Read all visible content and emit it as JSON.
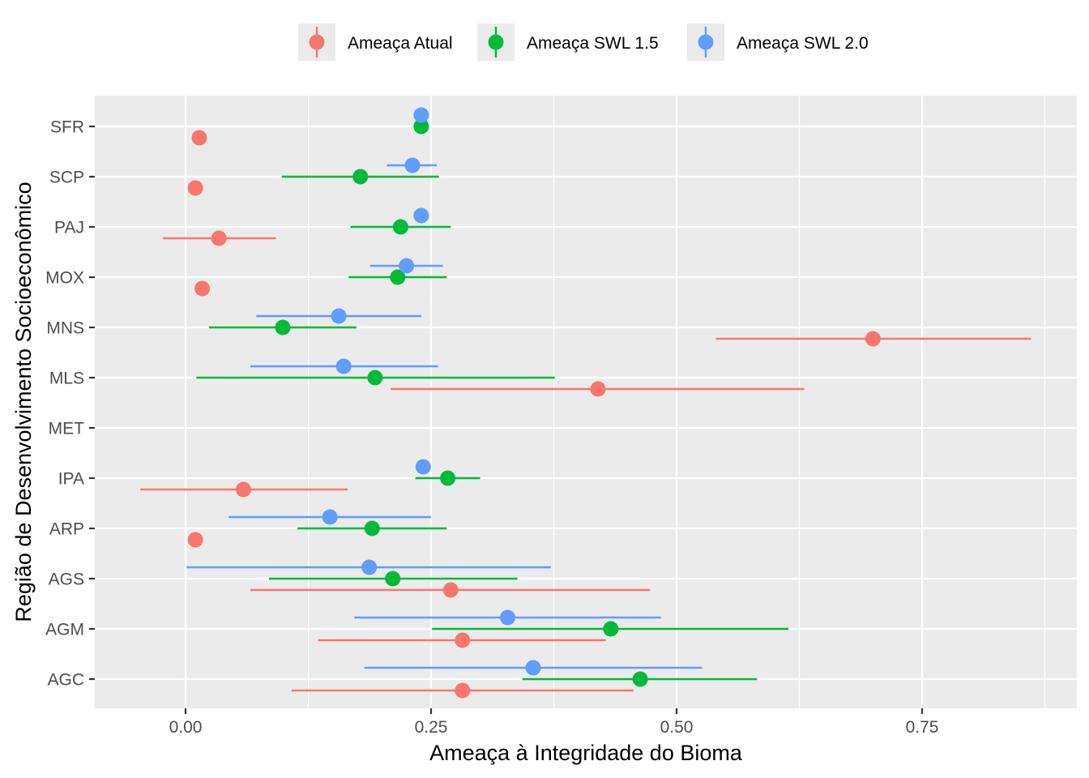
{
  "chart_data": {
    "type": "errorbar-dot",
    "xlabel": "Ameaça à Integridade do Bioma",
    "ylabel": "Região de Desenvolvimento Socioeconômico",
    "xlim": [
      -0.09,
      0.9
    ],
    "xticks": [
      0.0,
      0.25,
      0.5,
      0.75
    ],
    "xtick_labels": [
      "0.00",
      "0.25",
      "0.50",
      "0.75"
    ],
    "categories": [
      "SFR",
      "SCP",
      "PAJ",
      "MOX",
      "MNS",
      "MLS",
      "MET",
      "IPA",
      "ARP",
      "AGS",
      "AGM",
      "AGC"
    ],
    "grid": true,
    "legend_position": "top",
    "series": [
      {
        "name": "Ameaça Atual",
        "color": "#F8766D",
        "points": [
          {
            "category": "SFR",
            "value": 0.014,
            "low": null,
            "high": null
          },
          {
            "category": "SCP",
            "value": 0.01,
            "low": null,
            "high": null
          },
          {
            "category": "PAJ",
            "value": 0.034,
            "low": -0.023,
            "high": 0.092
          },
          {
            "category": "MOX",
            "value": 0.017,
            "low": 0.01,
            "high": 0.024
          },
          {
            "category": "MNS",
            "value": 0.7,
            "low": 0.54,
            "high": 0.861
          },
          {
            "category": "MLS",
            "value": 0.42,
            "low": 0.209,
            "high": 0.63
          },
          {
            "category": "IPA",
            "value": 0.059,
            "low": -0.046,
            "high": 0.165
          },
          {
            "category": "ARP",
            "value": 0.01,
            "low": null,
            "high": null
          },
          {
            "category": "AGS",
            "value": 0.27,
            "low": 0.066,
            "high": 0.473
          },
          {
            "category": "AGM",
            "value": 0.282,
            "low": 0.135,
            "high": 0.428
          },
          {
            "category": "AGC",
            "value": 0.282,
            "low": 0.108,
            "high": 0.456
          }
        ]
      },
      {
        "name": "Ameaça SWL 1.5",
        "color": "#00BA38",
        "points": [
          {
            "category": "SFR",
            "value": 0.24,
            "low": null,
            "high": null
          },
          {
            "category": "SCP",
            "value": 0.178,
            "low": 0.098,
            "high": 0.258
          },
          {
            "category": "PAJ",
            "value": 0.219,
            "low": 0.168,
            "high": 0.27
          },
          {
            "category": "MOX",
            "value": 0.216,
            "low": 0.166,
            "high": 0.266
          },
          {
            "category": "MNS",
            "value": 0.099,
            "low": 0.024,
            "high": 0.174
          },
          {
            "category": "MLS",
            "value": 0.193,
            "low": 0.011,
            "high": 0.376
          },
          {
            "category": "IPA",
            "value": 0.267,
            "low": 0.234,
            "high": 0.3
          },
          {
            "category": "ARP",
            "value": 0.19,
            "low": 0.114,
            "high": 0.266
          },
          {
            "category": "AGS",
            "value": 0.211,
            "low": 0.085,
            "high": 0.338
          },
          {
            "category": "AGM",
            "value": 0.433,
            "low": 0.251,
            "high": 0.614
          },
          {
            "category": "AGC",
            "value": 0.463,
            "low": 0.343,
            "high": 0.582
          }
        ]
      },
      {
        "name": "Ameaça SWL 2.0",
        "color": "#619CFF",
        "points": [
          {
            "category": "SFR",
            "value": 0.24,
            "low": null,
            "high": null
          },
          {
            "category": "SCP",
            "value": 0.231,
            "low": 0.205,
            "high": 0.256
          },
          {
            "category": "PAJ",
            "value": 0.24,
            "low": null,
            "high": null
          },
          {
            "category": "MOX",
            "value": 0.225,
            "low": 0.188,
            "high": 0.262
          },
          {
            "category": "MNS",
            "value": 0.156,
            "low": 0.072,
            "high": 0.24
          },
          {
            "category": "MLS",
            "value": 0.161,
            "low": 0.066,
            "high": 0.257
          },
          {
            "category": "IPA",
            "value": 0.242,
            "low": null,
            "high": null
          },
          {
            "category": "ARP",
            "value": 0.147,
            "low": 0.044,
            "high": 0.25
          },
          {
            "category": "AGS",
            "value": 0.187,
            "low": 0.001,
            "high": 0.372
          },
          {
            "category": "AGM",
            "value": 0.328,
            "low": 0.172,
            "high": 0.484
          },
          {
            "category": "AGC",
            "value": 0.354,
            "low": 0.182,
            "high": 0.526
          }
        ]
      }
    ]
  }
}
